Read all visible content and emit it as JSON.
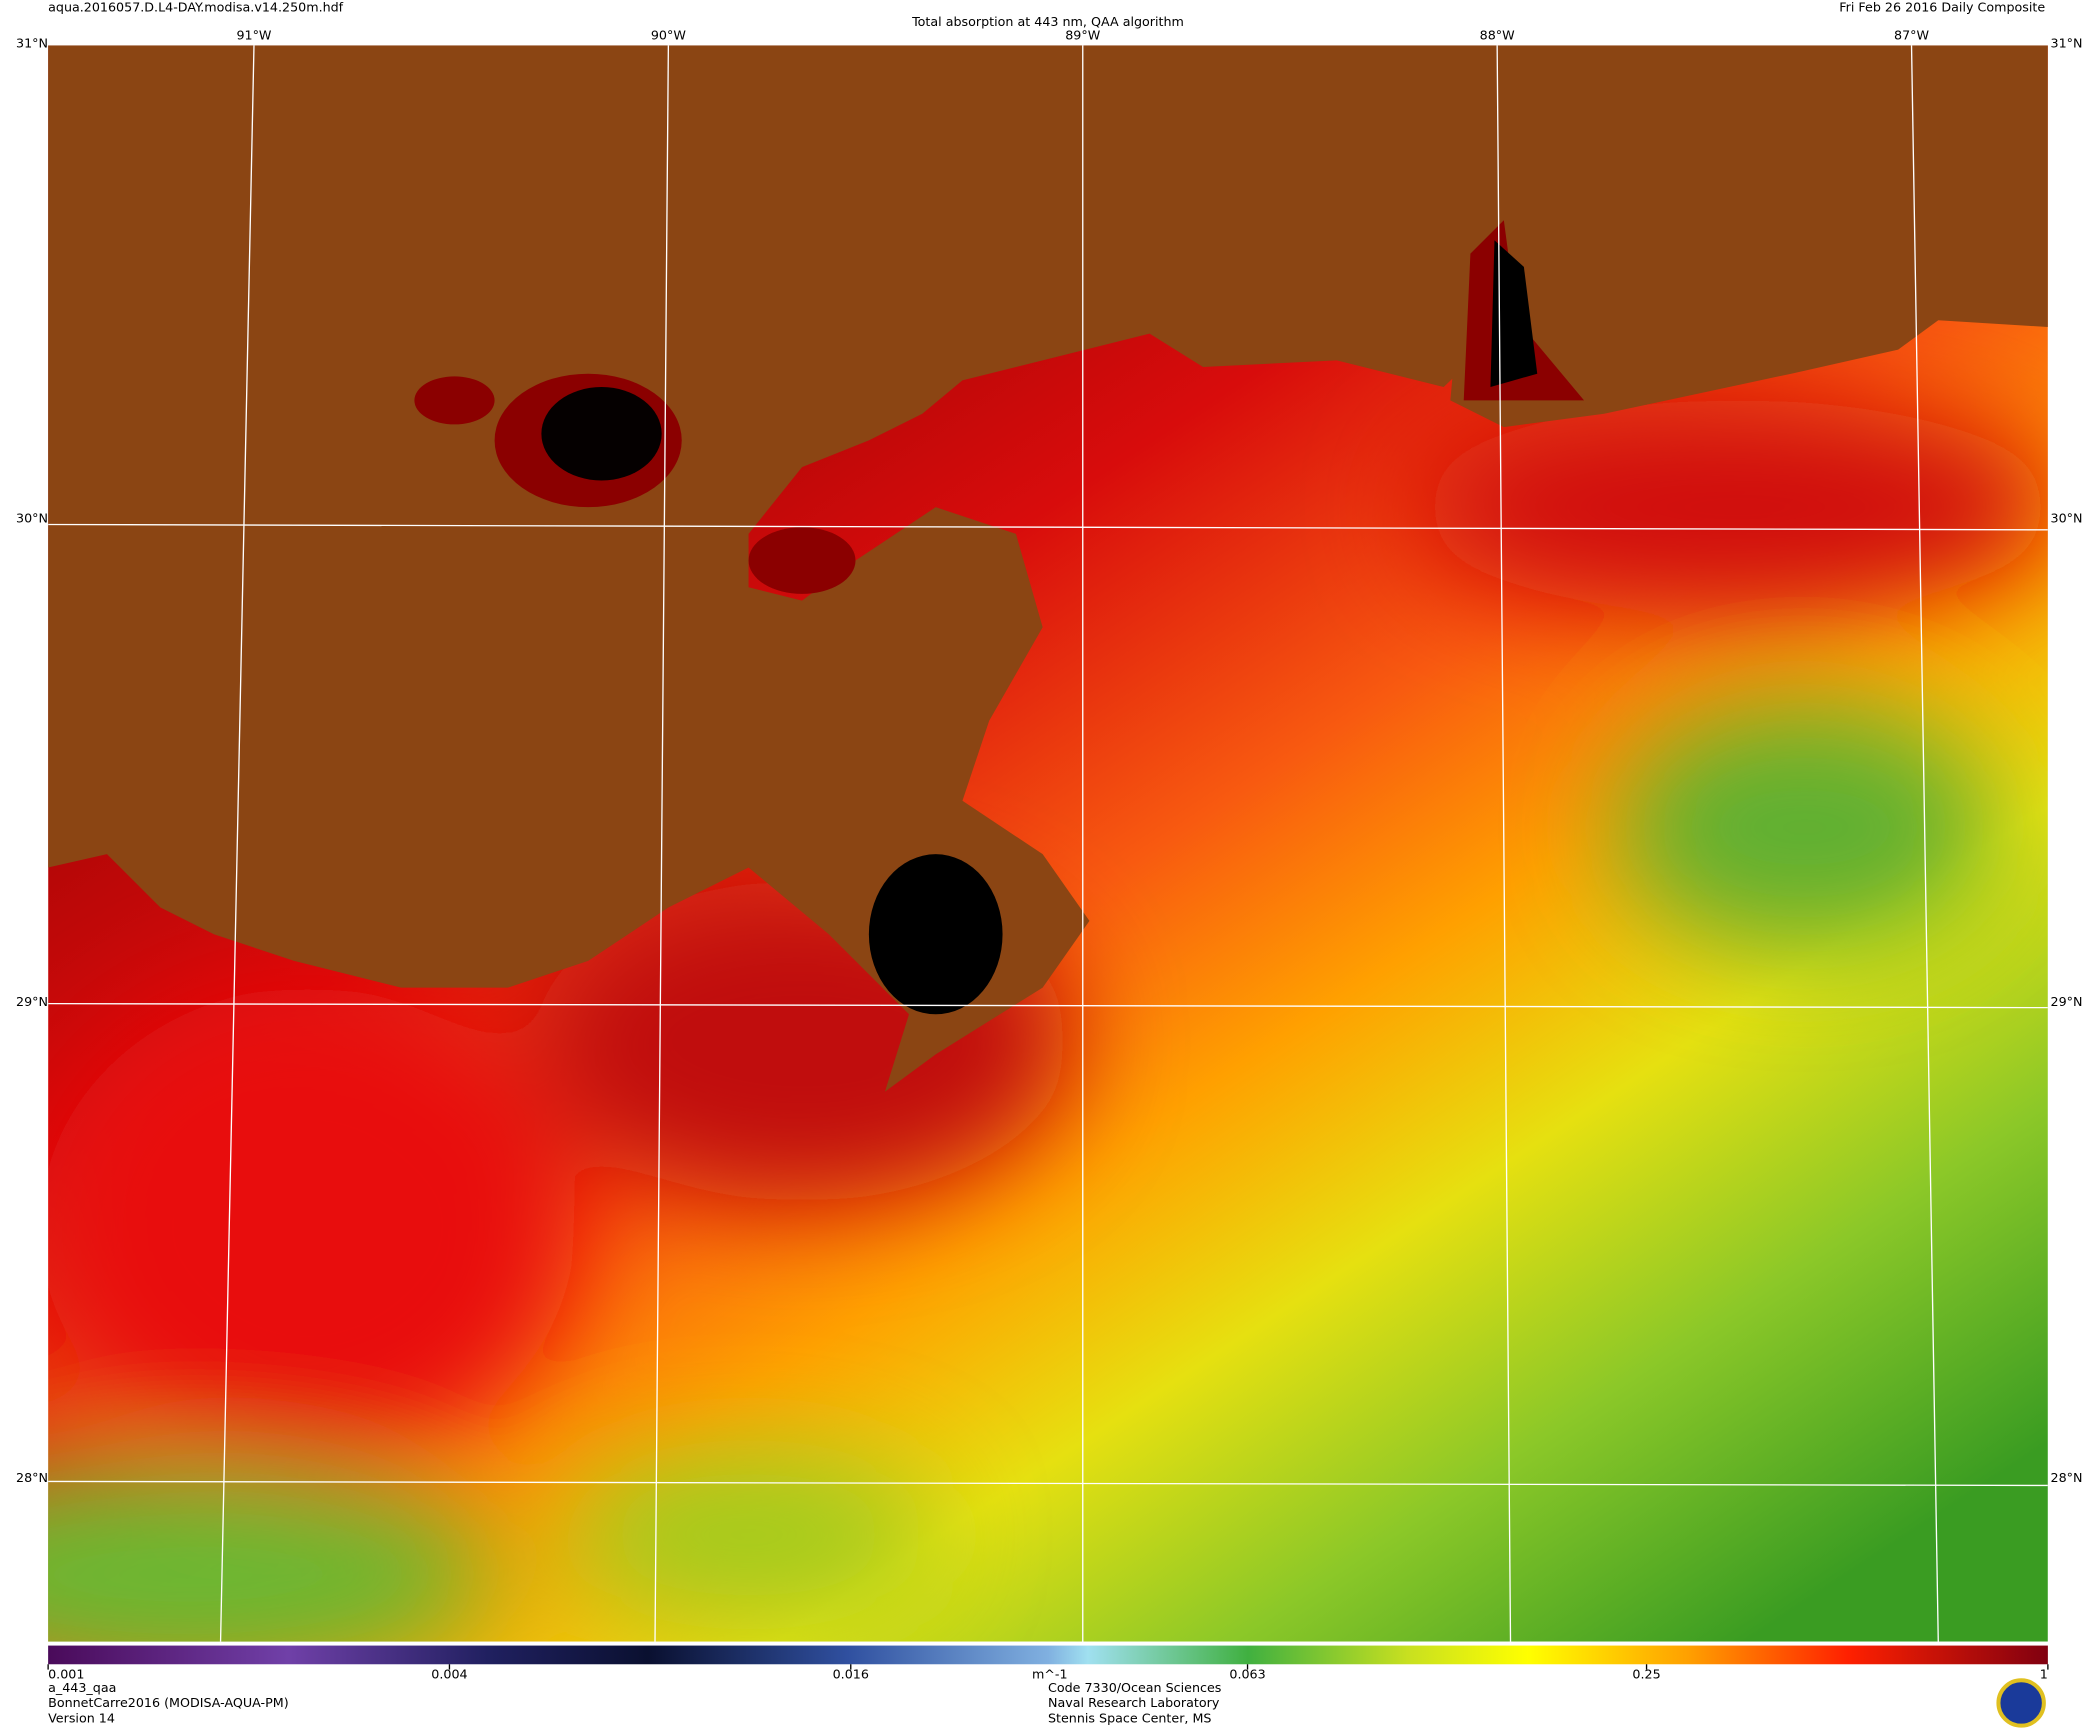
{
  "header": {
    "file": "aqua.2016057.D.L4-DAY.modisa.v14.250m.hdf",
    "title": "Total absorption at 443 nm, QAA algorithm",
    "date": "Fri Feb 26 2016 Daily Composite"
  },
  "map": {
    "lon_labels": [
      "91°W",
      "90°W",
      "89°W",
      "88°W",
      "87°W"
    ],
    "lat_labels": [
      "31°N",
      "30°N",
      "29°N",
      "28°N"
    ]
  },
  "colorbar": {
    "range": [
      0.001,
      1
    ],
    "log": true,
    "ticks": [
      0.001,
      0.004,
      0.016,
      0.063,
      0.25,
      1
    ],
    "unit": "m^-1"
  },
  "footer": {
    "left": [
      "a_443_qaa",
      "BonnetCarre2016 (MODISA-AQUA-PM)",
      "Version 14"
    ],
    "center": [
      "Code 7330/Ocean Sciences",
      "Naval Research Laboratory",
      "Stennis Space Center, MS"
    ]
  }
}
